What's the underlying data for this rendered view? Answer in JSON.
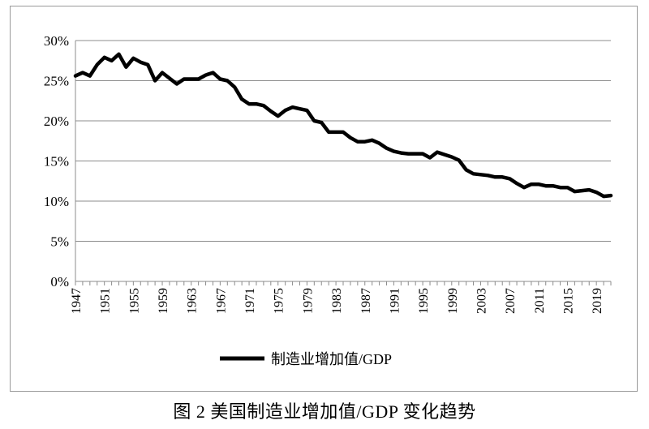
{
  "caption": "图 2 美国制造业增加值/GDP 变化趋势",
  "chart_data": {
    "type": "line",
    "title": "",
    "xlabel": "",
    "ylabel": "",
    "ylim": [
      0,
      30
    ],
    "xlim": [
      1947,
      2021
    ],
    "y_ticks": [
      "0%",
      "5%",
      "10%",
      "15%",
      "20%",
      "25%",
      "30%"
    ],
    "x_ticks": [
      "1947",
      "1951",
      "1955",
      "1959",
      "1963",
      "1967",
      "1971",
      "1975",
      "1979",
      "1983",
      "1987",
      "1991",
      "1995",
      "1999",
      "2003",
      "2007",
      "2011",
      "2015",
      "2019"
    ],
    "grid": true,
    "legend_position": "bottom",
    "series": [
      {
        "name": "制造业增加值/GDP",
        "color": "#000000",
        "x": [
          1947,
          1948,
          1949,
          1950,
          1951,
          1952,
          1953,
          1954,
          1955,
          1956,
          1957,
          1958,
          1959,
          1960,
          1961,
          1962,
          1963,
          1964,
          1965,
          1966,
          1967,
          1968,
          1969,
          1970,
          1971,
          1972,
          1973,
          1974,
          1975,
          1976,
          1977,
          1978,
          1979,
          1980,
          1981,
          1982,
          1983,
          1984,
          1985,
          1986,
          1987,
          1988,
          1989,
          1990,
          1991,
          1992,
          1993,
          1994,
          1995,
          1996,
          1997,
          1998,
          1999,
          2000,
          2001,
          2002,
          2003,
          2004,
          2005,
          2006,
          2007,
          2008,
          2009,
          2010,
          2011,
          2012,
          2013,
          2014,
          2015,
          2016,
          2017,
          2018,
          2019,
          2020,
          2021
        ],
        "values": [
          25.6,
          26.0,
          25.6,
          27.0,
          27.9,
          27.5,
          28.3,
          26.7,
          27.8,
          27.3,
          27.0,
          25.0,
          26.0,
          25.3,
          24.6,
          25.2,
          25.2,
          25.2,
          25.7,
          26.0,
          25.2,
          25.0,
          24.2,
          22.7,
          22.1,
          22.1,
          21.9,
          21.2,
          20.6,
          21.3,
          21.7,
          21.5,
          21.3,
          20.0,
          19.8,
          18.6,
          18.6,
          18.6,
          17.9,
          17.4,
          17.4,
          17.6,
          17.2,
          16.6,
          16.2,
          16.0,
          15.9,
          15.9,
          15.9,
          15.4,
          16.1,
          15.8,
          15.5,
          15.1,
          13.9,
          13.4,
          13.3,
          13.2,
          13.0,
          13.0,
          12.8,
          12.2,
          11.7,
          12.1,
          12.1,
          11.9,
          11.9,
          11.7,
          11.7,
          11.2,
          11.3,
          11.4,
          11.1,
          10.6,
          10.7
        ]
      }
    ]
  }
}
